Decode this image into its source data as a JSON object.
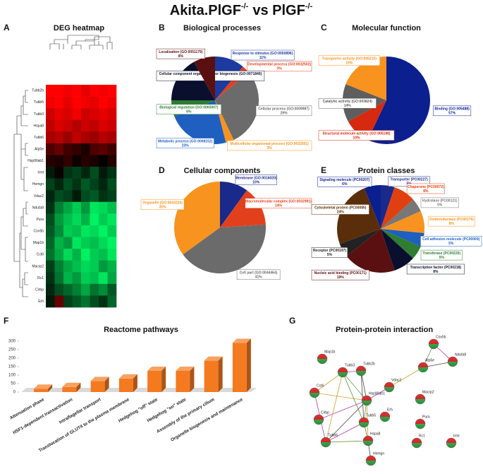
{
  "title": [
    {
      "text": "Akita.PlGF",
      "sup": "-/-"
    },
    {
      "text": "vs PlGF",
      "sup": "-/-"
    }
  ],
  "chart_data": [
    {
      "type": "heatmap",
      "panel": "A",
      "title": "DEG heatmap",
      "rows": [
        "Tubb2b",
        "Tubb5",
        "Tubb3",
        "Hspa8",
        "Tubb6",
        "Atp5e",
        "Hsp90ab1",
        "Irmt",
        "Hemgn",
        "Vdac2",
        "Ndufa8",
        "Pura",
        "Cox5b",
        "Map1b",
        "Cct6",
        "Macrp2",
        "Rc1",
        "Cirbp",
        "Erh"
      ],
      "values": [
        [
          2.0,
          2.1,
          1.9,
          2.0,
          1.8,
          2.0,
          1.9,
          2.0
        ],
        [
          1.9,
          2.0,
          1.8,
          2.1,
          1.9,
          1.8,
          2.0,
          1.9
        ],
        [
          1.6,
          1.8,
          1.7,
          1.9,
          1.6,
          1.7,
          1.8,
          1.7
        ],
        [
          1.5,
          1.7,
          1.6,
          1.4,
          1.6,
          1.5,
          1.7,
          1.6
        ],
        [
          1.3,
          1.4,
          1.2,
          1.5,
          1.3,
          1.2,
          1.4,
          1.3
        ],
        [
          0.6,
          0.8,
          0.5,
          0.4,
          0.2,
          0.6,
          0.7,
          0.5
        ],
        [
          0.3,
          0.2,
          0.4,
          0.1,
          0.3,
          0.2,
          0.0,
          0.3
        ],
        [
          -0.2,
          0.1,
          -0.4,
          -0.5,
          -0.3,
          -0.6,
          -0.2,
          -0.4
        ],
        [
          -0.5,
          -0.3,
          -0.6,
          -0.4,
          -0.7,
          -0.5,
          -0.3,
          -0.6
        ],
        [
          -0.3,
          -0.6,
          -0.5,
          -0.2,
          -0.6,
          -0.7,
          -0.4,
          -0.5
        ],
        [
          -0.4,
          -1.0,
          -1.3,
          -1.6,
          -1.2,
          -1.8,
          -1.7,
          -1.5
        ],
        [
          -0.6,
          -1.2,
          -1.5,
          -1.7,
          -1.4,
          -1.9,
          -1.6,
          -1.8
        ],
        [
          -0.7,
          -1.1,
          -1.6,
          -1.5,
          -1.8,
          -1.7,
          -1.9,
          -1.6
        ],
        [
          -0.8,
          -1.4,
          -1.2,
          -1.8,
          -1.6,
          -1.5,
          -1.7,
          -1.9
        ],
        [
          -0.9,
          -1.3,
          -1.7,
          -1.4,
          -1.9,
          -1.6,
          -1.5,
          -1.8
        ],
        [
          -0.5,
          -1.0,
          -1.3,
          -1.5,
          -1.7,
          -1.6,
          -1.2,
          -1.4
        ],
        [
          -0.4,
          -0.9,
          -1.4,
          -1.2,
          -1.6,
          -1.5,
          -1.8,
          -1.3
        ],
        [
          -0.3,
          -0.6,
          -0.8,
          -1.0,
          -1.3,
          -0.9,
          -1.1,
          -0.7
        ],
        [
          -0.2,
          0.8,
          -0.5,
          -0.7,
          -0.9,
          -0.6,
          -0.4,
          -0.8
        ]
      ],
      "zlim": [
        -2,
        2
      ],
      "colors": {
        "low": "#00ff66",
        "mid": "#000000",
        "high": "#ff0000"
      }
    },
    {
      "type": "pie",
      "panel": "B",
      "title": "Biological processes",
      "categories": [
        "Response to stimulus (GO:0050896)",
        "Developmental process (GO:0032502)",
        "Cellular process (GO:0009987)",
        "Multicellular organismal process (GO:0032501)",
        "Metabolic process (GO:0008152)",
        "Biological regulation (GO:0065007)",
        "Cellular component organisation or biogenesis (GO:0071840)",
        "Localization (GO:0051179)"
      ],
      "values": [
        11,
        3,
        29,
        3,
        23,
        6,
        17,
        8
      ],
      "value_labels": [
        "11%",
        "3%",
        "29%",
        "3%",
        "23%",
        "6%",
        "17%",
        "8%"
      ],
      "colors": [
        "#1c3aa0",
        "#e2401c",
        "#6b6b6b",
        "#f7931e",
        "#1f5fbf",
        "#2e7d32",
        "#0a0f2e",
        "#5a1010"
      ]
    },
    {
      "type": "pie",
      "panel": "C",
      "title": "Molecular function",
      "categories": [
        "Binding (GO:005488)",
        "Structural molecule activity (GO:005198)",
        "Catalytic activity (GO:003824)",
        "Transporter activity (GO:005215)"
      ],
      "values": [
        57,
        10,
        14,
        19
      ],
      "value_labels": [
        "57%",
        "10%",
        "14%",
        "19%"
      ],
      "colors": [
        "#0b1f8f",
        "#d62a10",
        "#5e5e5e",
        "#f7931e"
      ]
    },
    {
      "type": "pie",
      "panel": "D",
      "title": "Cellular components",
      "categories": [
        "Membrane (GO:0016020)",
        "Macromolecular complex (GO:0032991)",
        "Cell part (GO:0044464)",
        "Organelle (GO:0043226)"
      ],
      "values": [
        10,
        14,
        41,
        35
      ],
      "value_labels": [
        "10%",
        "14%",
        "41%",
        "35%"
      ],
      "colors": [
        "#1a2a8a",
        "#e2401c",
        "#6b6b6b",
        "#f7931e"
      ]
    },
    {
      "type": "pie",
      "panel": "E",
      "title": "Protein classes",
      "categories": [
        "Transporter (PC00227)",
        "Chaperone (PC00072)",
        "Hydrolase (PC00121)",
        "Oxidoreductase (PC00176)",
        "Cell adhesion molecule (PC00069)",
        "Transferase (PC00220)",
        "Transcription factor (PC00218)",
        "Nucleic acid binding (PC00171)",
        "Receptor (PC00197)",
        "Cytoskeletal protein (PC00085)",
        "Signaling molecule (PC00207)"
      ],
      "values": [
        5,
        8,
        5,
        8,
        5,
        5,
        8,
        19,
        5,
        24,
        6
      ],
      "value_labels": [
        "5%",
        "8%",
        "5%",
        "8%",
        "5%",
        "5%",
        "8%",
        "19%",
        "5%",
        "24%",
        "6%"
      ],
      "colors": [
        "#1a2a8a",
        "#e04010",
        "#777777",
        "#f7931e",
        "#1f5fbf",
        "#2e7d32",
        "#0a0f2e",
        "#5a1010",
        "#222222",
        "#5a2e0a",
        "#0b1f8f"
      ]
    },
    {
      "type": "bar",
      "panel": "F",
      "title": "Reactome pathways",
      "categories": [
        "Attenuation phase",
        "HSF1-dependent transactivation",
        "Intraflagellar transport",
        "Translocation of GLUT4 to the plasma membrane",
        "Hedgehog \"off\" state",
        "Hedgehog \"on\" state",
        "Assembly of the primary cilium",
        "Organelle biogenesis and maintenance"
      ],
      "values": [
        20,
        30,
        65,
        80,
        125,
        125,
        185,
        290
      ],
      "ylim": [
        0,
        300
      ],
      "yticks": [
        0,
        50,
        100,
        150,
        200,
        250,
        300
      ],
      "color": "#f47a20"
    },
    {
      "type": "network",
      "panel": "G",
      "title": "Protein-protein interaction",
      "nodes": [
        "Cox5b",
        "Ndufa8",
        "Atp5e",
        "Map1b",
        "Tubb3",
        "Tubb2b",
        "Vdac2",
        "Cct6",
        "Hsp90ab1",
        "Macrp2",
        "Erh",
        "Pura",
        "Cirbp",
        "Tubb5",
        "Rc1",
        "Irmt",
        "Tubb6",
        "Hspa8",
        "Hemgn"
      ],
      "edges": [
        [
          0,
          1
        ],
        [
          0,
          2
        ],
        [
          1,
          2
        ],
        [
          2,
          6
        ],
        [
          6,
          8
        ],
        [
          8,
          4
        ],
        [
          8,
          5
        ],
        [
          8,
          7
        ],
        [
          8,
          12
        ],
        [
          8,
          13
        ],
        [
          8,
          16
        ],
        [
          8,
          17
        ],
        [
          4,
          5
        ],
        [
          4,
          13
        ],
        [
          5,
          13
        ],
        [
          4,
          16
        ],
        [
          13,
          16
        ],
        [
          17,
          13
        ],
        [
          17,
          18
        ],
        [
          7,
          4
        ],
        [
          7,
          16
        ],
        [
          17,
          16
        ]
      ]
    }
  ]
}
